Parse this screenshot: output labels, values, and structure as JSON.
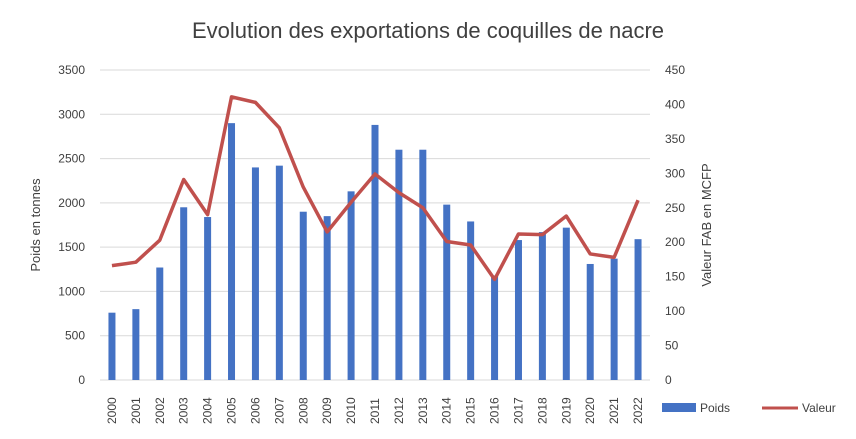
{
  "chart_data": {
    "type": "bar",
    "title": "Evolution des exportations de coquilles de nacre",
    "ylabel": "Poids en tonnes",
    "y2label": "Valeur FAB en MCFP",
    "ylim": [
      0,
      3500
    ],
    "y2lim": [
      0,
      450
    ],
    "yticks": [
      "0",
      "500",
      "1000",
      "1500",
      "2000",
      "2500",
      "3000",
      "3500"
    ],
    "y2ticks": [
      "0",
      "50",
      "100",
      "150",
      "200",
      "250",
      "300",
      "350",
      "400",
      "450"
    ],
    "grid": true,
    "legend_position": "bottom-right",
    "categories": [
      "2000",
      "2001",
      "2002",
      "2003",
      "2004",
      "2005",
      "2006",
      "2007",
      "2008",
      "2009",
      "2010",
      "2011",
      "2012",
      "2013",
      "2014",
      "2015",
      "2016",
      "2017",
      "2018",
      "2019",
      "2020",
      "2021",
      "2022"
    ],
    "series": [
      {
        "name": "Poids",
        "type": "bar",
        "axis": "left",
        "color": "#4472C4",
        "values": [
          760,
          800,
          1270,
          1950,
          1840,
          2900,
          2400,
          2420,
          1900,
          1850,
          2130,
          2880,
          2600,
          2600,
          1980,
          1790,
          1180,
          1580,
          1670,
          1720,
          1310,
          1370,
          1590
        ]
      },
      {
        "name": "Valeur",
        "type": "line",
        "axis": "right",
        "color": "#C0504D",
        "values": [
          166,
          171,
          203,
          291,
          240,
          411,
          403,
          366,
          280,
          215,
          258,
          299,
          272,
          250,
          201,
          196,
          146,
          212,
          211,
          238,
          183,
          178,
          261
        ]
      }
    ]
  }
}
